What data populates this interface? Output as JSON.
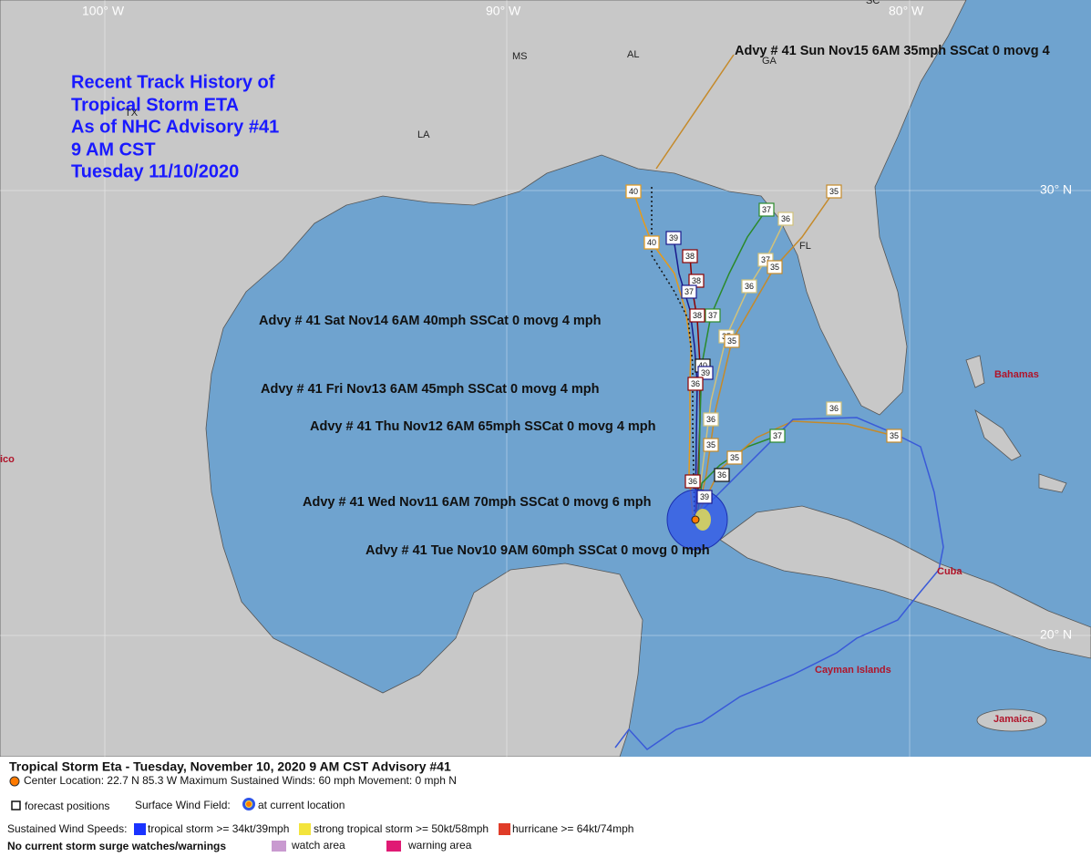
{
  "map": {
    "title_lines": [
      "Recent Track History of",
      "Tropical Storm ETA",
      "As of NHC Advisory #41",
      "9 AM CST",
      "Tuesday 11/10/2020"
    ],
    "grid_labels": [
      "100° W",
      "90° W",
      "80° W",
      "30° N",
      "20° N"
    ],
    "states": [
      "MS",
      "AL",
      "GA",
      "LA",
      "TX",
      "FL",
      "SC"
    ],
    "places": [
      "Bahamas",
      "Cuba",
      "Cayman Islands",
      "Jamaica",
      "ico"
    ],
    "advisories": [
      "Advy # 41 Sun Nov15 6AM  35mph SSCat 0 movg 4",
      "Advy # 41 Sat Nov14 6AM  40mph SSCat 0 movg 4 mph",
      "Advy # 41 Fri Nov13 6AM  45mph SSCat 0 movg 4 mph",
      "Advy # 41 Thu Nov12 6AM  65mph SSCat 0 movg 4 mph",
      "Advy # 41 Wed Nov11 6AM  70mph SSCat 0 movg 6 mph",
      "Advy # 41 Tue Nov10 9AM  60mph SSCat 0 movg 0 mph"
    ],
    "track_labels": [
      40,
      40,
      39,
      38,
      38,
      37,
      37,
      36,
      35,
      37,
      35,
      36,
      37,
      38,
      35,
      35,
      40,
      39,
      36,
      36,
      35,
      35,
      37,
      36,
      35,
      36,
      39,
      36
    ]
  },
  "legend": {
    "heading": "Tropical Storm Eta  -  Tuesday, November 10, 2020  9 AM CST   Advisory #41",
    "details": "Center Location: 22.7 N  85.3 W  Maximum Sustained Winds: 60 mph  Movement: 0 mph N",
    "forecast": "forecast positions",
    "wind_field": "Surface Wind Field:",
    "current": "at current location",
    "speeds": "Sustained Wind Speeds:",
    "ts": "tropical storm >= 34kt/39mph",
    "sts": "strong tropical storm >= 50kt/58mph",
    "hu": "hurricane >= 64kt/74mph",
    "surge": "No current storm surge watches/warnings",
    "watch": "watch area",
    "warning": "warning area"
  }
}
